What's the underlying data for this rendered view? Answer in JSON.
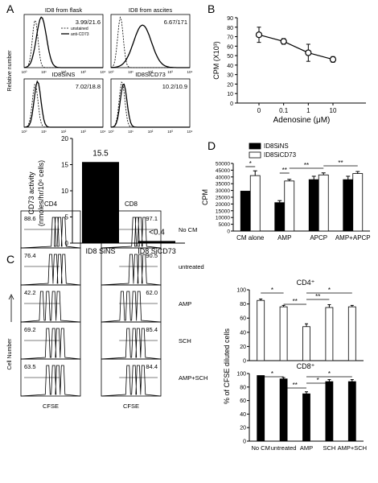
{
  "panel_letters": [
    "A",
    "B",
    "C",
    "D"
  ],
  "panelA": {
    "axis_label": "Relative number",
    "legend": {
      "isotype": "unstained",
      "stained": "anti-CD73"
    },
    "tick_labels": [
      "10⁰",
      "10¹",
      "10²",
      "10³",
      "10⁴"
    ],
    "histograms": [
      {
        "title": "ID8 from flask",
        "value": "3.99/21.6"
      },
      {
        "title": "ID8 from ascites",
        "value": "6.67/171"
      },
      {
        "title": "ID8SiNS",
        "value": "7.02/18.8"
      },
      {
        "title": "ID8SiCD73",
        "value": "10.2/10.9"
      }
    ]
  },
  "chart_data": [
    {
      "id": "A-bar",
      "type": "bar",
      "categories": [
        "ID8 SiNS",
        "ID8 SiCD73"
      ],
      "values": [
        15.5,
        0.4
      ],
      "data_labels": [
        "15.5",
        "<0.4"
      ],
      "ylabel": "CD73 activity",
      "ylabel2": "(nmoles/hr/10⁶ cells)",
      "ylim": [
        0,
        20
      ],
      "yticks": [
        0,
        5,
        10,
        15,
        20
      ],
      "colors": [
        "#000000"
      ]
    },
    {
      "id": "B",
      "type": "line",
      "x": [
        "0",
        "0.1",
        "1",
        "10"
      ],
      "y": [
        72,
        65,
        53,
        46
      ],
      "err": [
        8,
        3,
        9,
        3
      ],
      "xlabel": "Adenosine (μM)",
      "ylabel": "CPM (X10³)",
      "ylim": [
        0,
        90
      ],
      "yticks": [
        0,
        10,
        20,
        30,
        40,
        50,
        60,
        70,
        80,
        90
      ],
      "grid": false
    },
    {
      "id": "D",
      "type": "bar",
      "categories": [
        "CM alone",
        "AMP",
        "APCP",
        "AMP+APCP"
      ],
      "series": [
        {
          "name": "ID8SiNS",
          "values": [
            29500,
            21000,
            38000,
            38000
          ],
          "err": [
            0,
            1500,
            2500,
            2500
          ],
          "color": "#000000"
        },
        {
          "name": "ID8SiCD73",
          "values": [
            41000,
            37000,
            41500,
            42500
          ],
          "err": [
            3500,
            1200,
            1500,
            1500
          ],
          "color": "#ffffff"
        }
      ],
      "ylabel": "CPM",
      "ylim": [
        0,
        50000
      ],
      "yticks": [
        0,
        5000,
        10000,
        15000,
        20000,
        25000,
        30000,
        35000,
        40000,
        45000,
        50000
      ],
      "legend_position": "top-center",
      "annotations": [
        "*",
        "**",
        "**",
        "**"
      ]
    },
    {
      "id": "C-CD4",
      "type": "bar",
      "title": "CD4⁺",
      "categories": [
        "No CM",
        "untreated",
        "AMP",
        "SCH",
        "AMP+SCH"
      ],
      "values": [
        85,
        76,
        48,
        75,
        76
      ],
      "err": [
        2,
        2,
        4,
        4,
        2
      ],
      "ylim": [
        0,
        100
      ],
      "yticks": [
        0,
        20,
        40,
        60,
        80,
        100
      ],
      "colors": [
        "#ffffff"
      ],
      "annotations": [
        "*",
        "**",
        "**",
        "*"
      ]
    },
    {
      "id": "C-CD8",
      "type": "bar",
      "title": "CD8⁺",
      "categories": [
        "No CM",
        "untreated",
        "AMP",
        "SCH",
        "AMP+SCH"
      ],
      "values": [
        97,
        92,
        70,
        88,
        88
      ],
      "err": [
        0,
        2,
        3,
        3,
        3
      ],
      "ylim": [
        0,
        100
      ],
      "yticks": [
        0,
        20,
        40,
        60,
        80,
        100
      ],
      "colors": [
        "#000000"
      ],
      "annotations": [
        "*",
        "**",
        "*",
        "*"
      ]
    }
  ],
  "panelC": {
    "shared_ylabel": "% of CFSE diluted cells",
    "col_titles": [
      "CD4",
      "CD8"
    ],
    "row_labels": [
      "No CM",
      "untreated",
      "AMP",
      "SCH",
      "AMP+SCH"
    ],
    "cd4_values": [
      "88.6",
      "76.4",
      "42.2",
      "69.2",
      "63.5"
    ],
    "cd8_values": [
      "97.1",
      "90.5",
      "62.0",
      "85.4",
      "84.4"
    ],
    "xaxis_label": "CFSE",
    "yaxis_label": "Cell Number"
  }
}
